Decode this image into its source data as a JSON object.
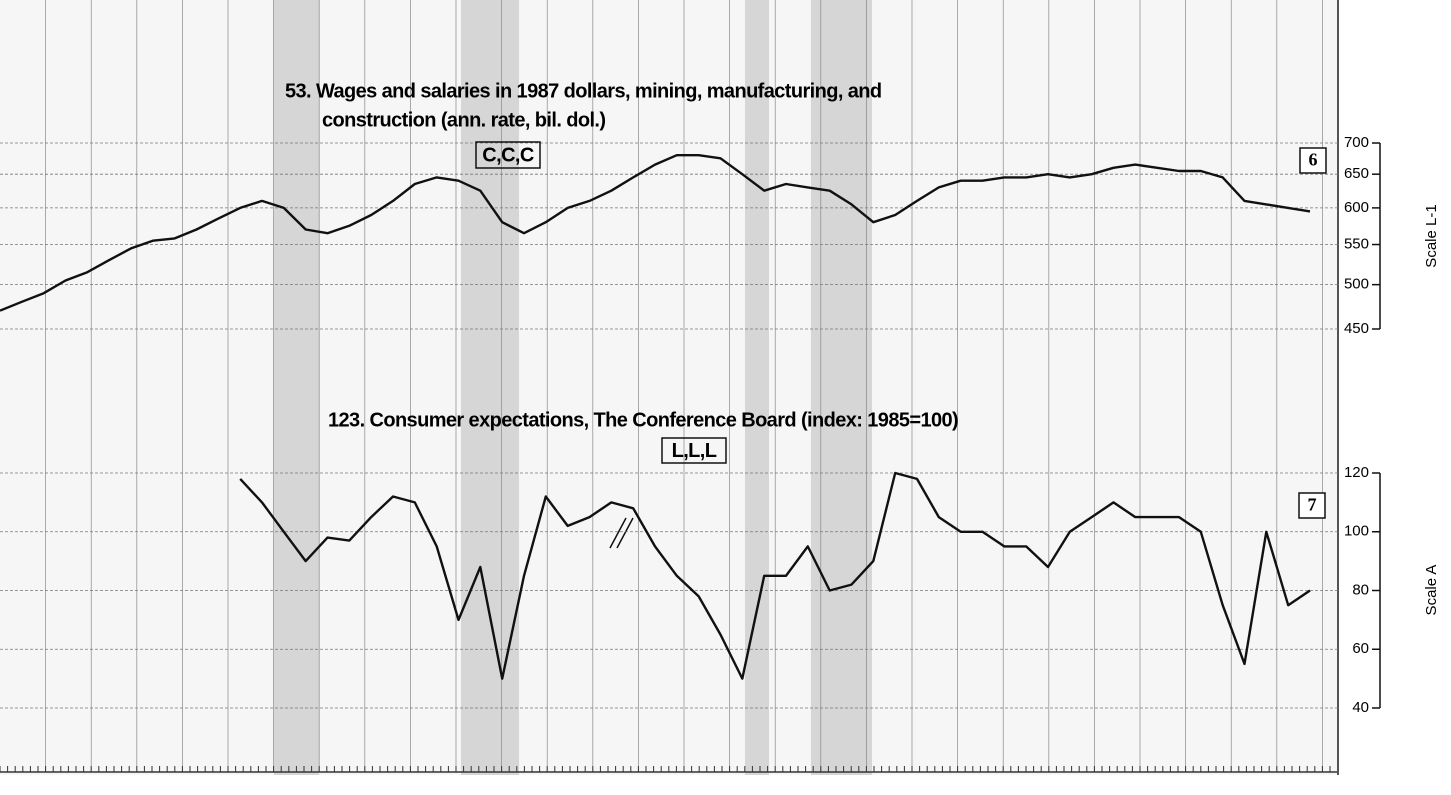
{
  "chart_data": [
    {
      "type": "line",
      "title": [
        "53. Wages and salaries in 1987 dollars, mining, manufacturing, and",
        "construction (ann. rate, bil. dol.)"
      ],
      "annotation": "C,C,C",
      "panel_number": "6",
      "y_label": "Scale L-1",
      "log_scale": true,
      "grid": true,
      "ylim": [
        450,
        700
      ],
      "yticks": [
        450,
        500,
        550,
        600,
        650,
        700
      ],
      "categories": [
        null,
        null,
        null,
        null,
        null,
        null,
        null,
        null,
        null,
        null,
        null,
        null,
        null,
        null,
        null,
        null,
        null,
        null,
        null,
        null,
        null,
        null,
        null,
        null,
        null,
        null,
        null,
        null,
        null,
        null,
        null,
        null,
        null,
        null,
        null,
        null,
        null,
        null,
        null,
        null,
        null,
        null,
        null,
        null,
        null,
        null,
        null,
        null,
        null,
        null,
        null,
        null,
        null,
        null,
        null,
        null,
        null,
        null,
        null,
        null,
        null
      ],
      "series": [
        {
          "name": "Wages and salaries",
          "color": "#111111",
          "values": [
            470,
            480,
            490,
            505,
            515,
            530,
            545,
            555,
            558,
            570,
            585,
            600,
            610,
            600,
            570,
            565,
            575,
            590,
            610,
            635,
            645,
            640,
            625,
            580,
            565,
            580,
            600,
            610,
            625,
            645,
            665,
            680,
            680,
            675,
            650,
            625,
            635,
            630,
            625,
            605,
            580,
            590,
            610,
            630,
            640,
            640,
            645,
            645,
            650,
            645,
            650,
            660,
            665,
            660,
            655,
            655,
            645,
            610,
            605,
            600,
            595
          ]
        }
      ]
    },
    {
      "type": "line",
      "title": [
        "123. Consumer expectations, The Conference Board (index: 1985=100)"
      ],
      "annotation": "L,L,L",
      "panel_number": "7",
      "y_label": "Scale A",
      "log_scale": false,
      "grid": true,
      "ylim": [
        40,
        120
      ],
      "yticks": [
        40,
        60,
        80,
        100,
        120
      ],
      "categories": [
        null,
        null,
        null,
        null,
        null,
        null,
        null,
        null,
        null,
        null,
        null,
        null,
        null,
        null,
        null,
        null,
        null,
        null,
        null,
        null,
        null,
        null,
        null,
        null,
        null,
        null,
        null,
        null,
        null,
        null,
        null,
        null,
        null,
        null,
        null,
        null,
        null,
        null,
        null,
        null,
        null,
        null,
        null,
        null,
        null,
        null,
        null,
        null,
        null,
        null,
        null,
        null,
        null,
        null,
        null,
        null,
        null,
        null,
        null,
        null,
        null
      ],
      "series": [
        {
          "name": "Consumer expectations",
          "color": "#111111",
          "values": [
            null,
            null,
            null,
            null,
            null,
            null,
            null,
            null,
            null,
            null,
            null,
            118,
            110,
            100,
            90,
            98,
            97,
            105,
            112,
            110,
            95,
            70,
            88,
            50,
            85,
            112,
            102,
            105,
            110,
            108,
            95,
            85,
            78,
            65,
            50,
            85,
            85,
            95,
            80,
            82,
            90,
            120,
            118,
            105,
            100,
            100,
            95,
            95,
            88,
            100,
            105,
            110,
            105,
            105,
            105,
            100,
            75,
            55,
            100,
            75,
            80
          ]
        }
      ]
    }
  ]
}
